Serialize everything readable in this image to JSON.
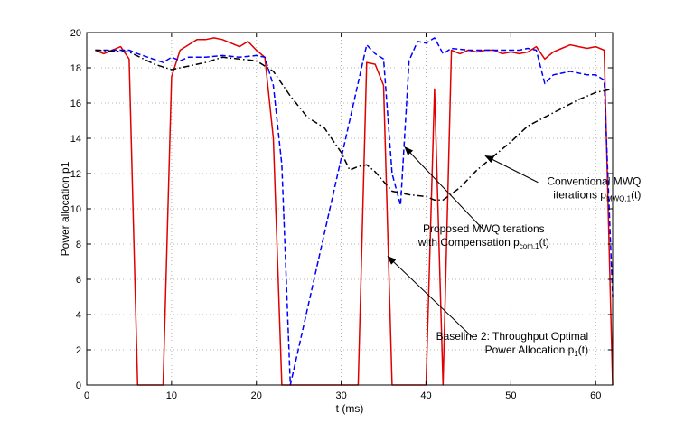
{
  "chart_data": {
    "type": "line",
    "title": "",
    "xlabel": "t (ms)",
    "ylabel": "Power allocation p1",
    "xlim": [
      0,
      62
    ],
    "ylim": [
      0,
      20
    ],
    "grid": true,
    "xticks": [
      0,
      10,
      20,
      30,
      40,
      50,
      60
    ],
    "yticks": [
      0,
      2,
      4,
      6,
      8,
      10,
      12,
      14,
      16,
      18,
      20
    ],
    "series": [
      {
        "name": "Baseline 2: Throughput Optimal Power Allocation",
        "color": "#e00000",
        "style": "solid",
        "points": [
          [
            1,
            19.0
          ],
          [
            2,
            18.8
          ],
          [
            3,
            19.0
          ],
          [
            4,
            19.2
          ],
          [
            5,
            18.5
          ],
          [
            6,
            0
          ],
          [
            9,
            0
          ],
          [
            10,
            17.5
          ],
          [
            11,
            19.0
          ],
          [
            12,
            19.3
          ],
          [
            13,
            19.6
          ],
          [
            14,
            19.6
          ],
          [
            15,
            19.7
          ],
          [
            16,
            19.6
          ],
          [
            17,
            19.4
          ],
          [
            18,
            19.2
          ],
          [
            19,
            19.5
          ],
          [
            20,
            19.0
          ],
          [
            21,
            18.6
          ],
          [
            22,
            14.0
          ],
          [
            23,
            0
          ],
          [
            32,
            0
          ],
          [
            33,
            18.3
          ],
          [
            34,
            18.2
          ],
          [
            35,
            17.0
          ],
          [
            36,
            0
          ],
          [
            40,
            0
          ],
          [
            41,
            16.8
          ],
          [
            42,
            0
          ],
          [
            43,
            19.0
          ],
          [
            44,
            18.8
          ],
          [
            45,
            19.0
          ],
          [
            46,
            18.9
          ],
          [
            47,
            19.0
          ],
          [
            48,
            19.0
          ],
          [
            49,
            18.8
          ],
          [
            50,
            18.9
          ],
          [
            51,
            18.8
          ],
          [
            52,
            18.9
          ],
          [
            53,
            19.2
          ],
          [
            54,
            18.5
          ],
          [
            55,
            18.9
          ],
          [
            56,
            19.1
          ],
          [
            57,
            19.3
          ],
          [
            58,
            19.2
          ],
          [
            59,
            19.1
          ],
          [
            60,
            19.2
          ],
          [
            61,
            19.0
          ],
          [
            62,
            0
          ]
        ]
      },
      {
        "name": "Proposed MWQ iterations with Compensation",
        "color": "#0000ff",
        "style": "dashed",
        "points": [
          [
            1,
            19.0
          ],
          [
            2,
            19.0
          ],
          [
            3,
            19.0
          ],
          [
            5,
            19.0
          ],
          [
            6,
            18.8
          ],
          [
            9,
            18.3
          ],
          [
            10,
            18.6
          ],
          [
            11,
            18.4
          ],
          [
            12,
            18.6
          ],
          [
            14,
            18.6
          ],
          [
            16,
            18.7
          ],
          [
            18,
            18.6
          ],
          [
            20,
            18.7
          ],
          [
            21,
            18.6
          ],
          [
            22,
            17.0
          ],
          [
            23,
            12.5
          ],
          [
            24,
            0
          ],
          [
            33,
            19.3
          ],
          [
            34,
            18.8
          ],
          [
            35,
            18.5
          ],
          [
            36,
            12.0
          ],
          [
            37,
            10.2
          ],
          [
            38,
            18.4
          ],
          [
            39,
            19.5
          ],
          [
            40,
            19.4
          ],
          [
            41,
            19.7
          ],
          [
            42,
            18.8
          ],
          [
            43,
            19.1
          ],
          [
            45,
            19.0
          ],
          [
            50,
            19.0
          ],
          [
            51,
            19.0
          ],
          [
            52,
            19.1
          ],
          [
            53,
            19.0
          ],
          [
            54,
            17.1
          ],
          [
            55,
            17.6
          ],
          [
            56,
            17.7
          ],
          [
            57,
            17.8
          ],
          [
            58,
            17.7
          ],
          [
            59,
            17.6
          ],
          [
            60,
            17.6
          ],
          [
            61,
            17.3
          ],
          [
            62,
            5.0
          ]
        ]
      },
      {
        "name": "Conventional MWQ iterations",
        "color": "#000000",
        "style": "dashdot",
        "points": [
          [
            1,
            19.0
          ],
          [
            5,
            18.9
          ],
          [
            8,
            18.2
          ],
          [
            10,
            17.9
          ],
          [
            12,
            18.1
          ],
          [
            14,
            18.3
          ],
          [
            16,
            18.6
          ],
          [
            18,
            18.5
          ],
          [
            20,
            18.4
          ],
          [
            22,
            17.8
          ],
          [
            24,
            16.4
          ],
          [
            26,
            15.2
          ],
          [
            28,
            14.6
          ],
          [
            30,
            13.2
          ],
          [
            31,
            12.2
          ],
          [
            32,
            12.4
          ],
          [
            33,
            12.5
          ],
          [
            34,
            12.1
          ],
          [
            36,
            11.0
          ],
          [
            38,
            10.8
          ],
          [
            40,
            10.7
          ],
          [
            41,
            10.5
          ],
          [
            42,
            10.5
          ],
          [
            44,
            11.2
          ],
          [
            46,
            12.2
          ],
          [
            48,
            13.0
          ],
          [
            50,
            13.8
          ],
          [
            52,
            14.7
          ],
          [
            54,
            15.2
          ],
          [
            56,
            15.7
          ],
          [
            58,
            16.2
          ],
          [
            60,
            16.6
          ],
          [
            62,
            16.8
          ]
        ]
      }
    ],
    "annotations": [
      {
        "lines": [
          {
            "text": "Conventional MWQ",
            "sub": "",
            "tail": ""
          },
          {
            "text": "iterations p",
            "sub": "MWQ,1",
            "tail": "(t)"
          }
        ],
        "anchor": "end",
        "arrow_to": [
          47.0,
          13.0
        ],
        "arrow_from": [
          53.2,
          11.5
        ]
      },
      {
        "lines": [
          {
            "text": "Proposed MWQ terations",
            "sub": "",
            "tail": ""
          },
          {
            "text": "with Compensation p",
            "sub": "com,1",
            "tail": "(t)"
          }
        ],
        "anchor": "middle",
        "arrow_to": [
          37.5,
          13.5
        ],
        "arrow_from": [
          46.8,
          8.8
        ]
      },
      {
        "lines": [
          {
            "text": "Baseline 2: Throughput  Optimal",
            "sub": "",
            "tail": ""
          },
          {
            "text": "Power Allocation p",
            "sub": "1",
            "tail": "(t)"
          }
        ],
        "anchor": "end",
        "arrow_to": [
          35.5,
          7.3
        ],
        "arrow_from": [
          45.5,
          2.7
        ]
      }
    ]
  }
}
